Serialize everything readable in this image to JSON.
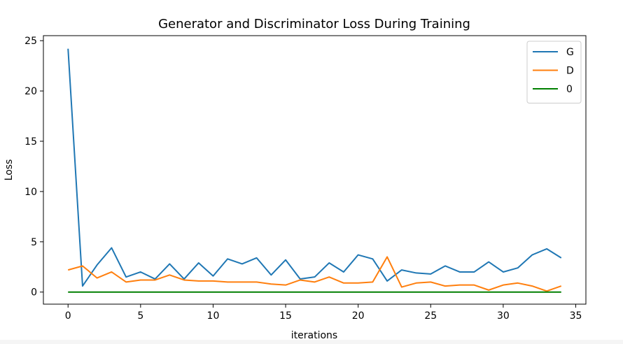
{
  "chart_data": {
    "type": "line",
    "title": "Generator and Discriminator Loss During Training",
    "xlabel": "iterations",
    "ylabel": "Loss",
    "xlim": [
      -1.7,
      35.7
    ],
    "ylim": [
      -1.2,
      25.5
    ],
    "xticks": [
      0,
      5,
      10,
      15,
      20,
      25,
      30,
      35
    ],
    "yticks": [
      0,
      5,
      10,
      15,
      20,
      25
    ],
    "grid": false,
    "legend_position": "top-right",
    "x": [
      0,
      1,
      2,
      3,
      4,
      5,
      6,
      7,
      8,
      9,
      10,
      11,
      12,
      13,
      14,
      15,
      16,
      17,
      18,
      19,
      20,
      21,
      22,
      23,
      24,
      25,
      26,
      27,
      28,
      29,
      30,
      31,
      32,
      33,
      34
    ],
    "series": [
      {
        "name": "G",
        "color": "#1f77b4",
        "values": [
          24.2,
          0.6,
          2.7,
          4.4,
          1.5,
          2.0,
          1.3,
          2.8,
          1.3,
          2.9,
          1.6,
          3.3,
          2.8,
          3.4,
          1.7,
          3.2,
          1.3,
          1.5,
          2.9,
          2.0,
          3.7,
          3.3,
          1.1,
          2.2,
          1.9,
          1.8,
          2.6,
          2.0,
          2.0,
          3.0,
          2.0,
          2.4,
          3.7,
          4.3,
          3.4
        ]
      },
      {
        "name": "D",
        "color": "#ff7f0e",
        "values": [
          2.2,
          2.6,
          1.4,
          2.0,
          1.0,
          1.2,
          1.2,
          1.7,
          1.2,
          1.1,
          1.1,
          1.0,
          1.0,
          1.0,
          0.8,
          0.7,
          1.2,
          1.0,
          1.5,
          0.9,
          0.9,
          1.0,
          3.5,
          0.5,
          0.9,
          1.0,
          0.6,
          0.7,
          0.7,
          0.2,
          0.7,
          0.9,
          0.6,
          0.1,
          0.6
        ]
      },
      {
        "name": "0",
        "color": "#008000",
        "values": [
          0,
          0,
          0,
          0,
          0,
          0,
          0,
          0,
          0,
          0,
          0,
          0,
          0,
          0,
          0,
          0,
          0,
          0,
          0,
          0,
          0,
          0,
          0,
          0,
          0,
          0,
          0,
          0,
          0,
          0,
          0,
          0,
          0,
          0,
          0
        ]
      }
    ]
  }
}
